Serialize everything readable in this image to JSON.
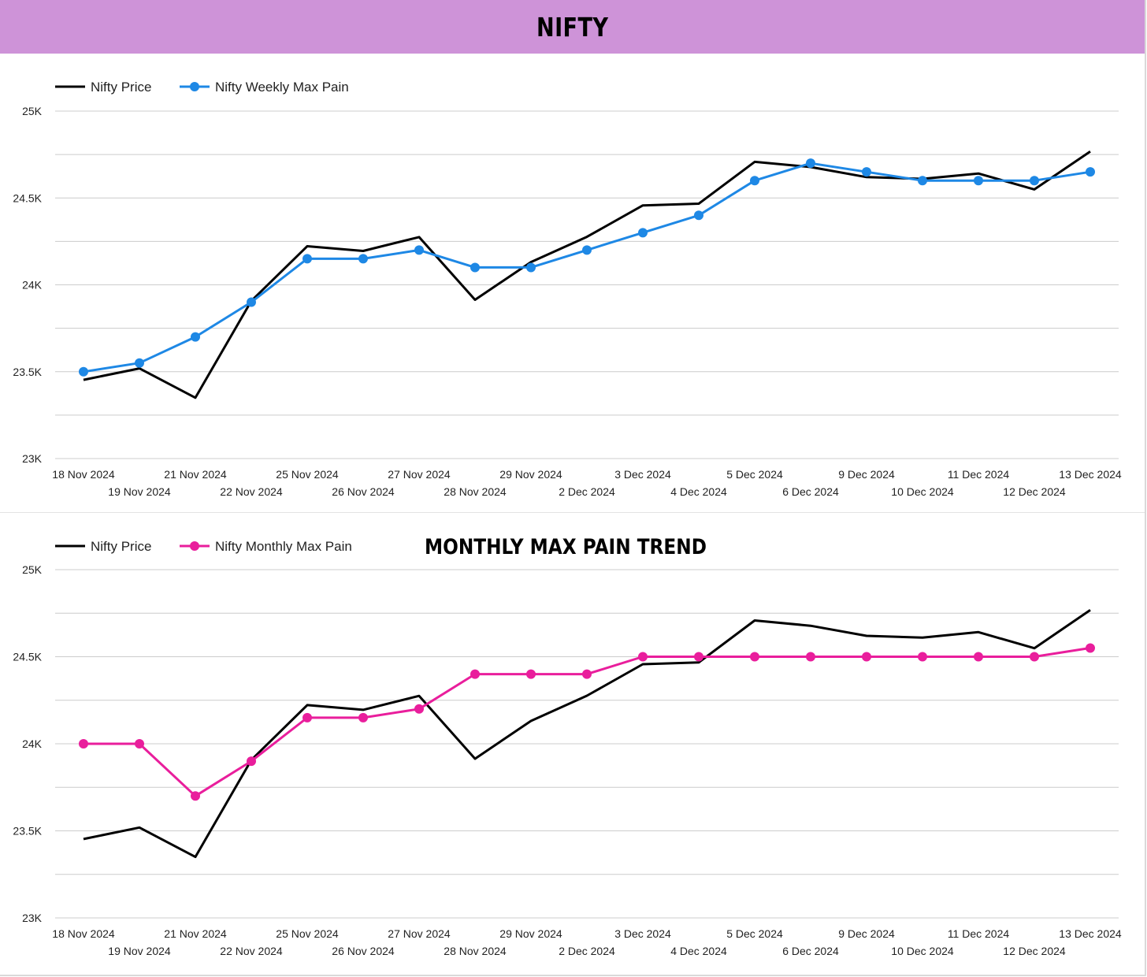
{
  "header": {
    "title": "NIFTY",
    "background": "#ce93d8"
  },
  "colors": {
    "price": "#000000",
    "weekly": "#1e88e5",
    "monthly": "#e91e9c",
    "grid": "#cccccc"
  },
  "chart_data": [
    {
      "type": "line",
      "title": "",
      "xlabel": "",
      "ylabel": "",
      "ylim": [
        23000,
        25000
      ],
      "y_ticks": [
        "23K",
        "23.5K",
        "24K",
        "24.5K",
        "25K"
      ],
      "grid": true,
      "legend": "top-left",
      "categories": [
        "18 Nov 2024",
        "19 Nov 2024",
        "21 Nov 2024",
        "22 Nov 2024",
        "25 Nov 2024",
        "26 Nov 2024",
        "27 Nov 2024",
        "28 Nov 2024",
        "29 Nov 2024",
        "2 Dec 2024",
        "3 Dec 2024",
        "4 Dec 2024",
        "5 Dec 2024",
        "6 Dec 2024",
        "9 Dec 2024",
        "10 Dec 2024",
        "11 Dec 2024",
        "12 Dec 2024",
        "13 Dec 2024"
      ],
      "series": [
        {
          "name": "Nifty Price",
          "color": "#000000",
          "markers": false,
          "values": [
            23453,
            23519,
            23350,
            23907,
            24222,
            24195,
            24275,
            23914,
            24131,
            24276,
            24457,
            24467,
            24708,
            24678,
            24620,
            24610,
            24641,
            24549,
            24768
          ]
        },
        {
          "name": "Nifty Weekly Max Pain",
          "color": "#1e88e5",
          "markers": true,
          "values": [
            23500,
            23550,
            23700,
            23900,
            24150,
            24150,
            24200,
            24100,
            24100,
            24200,
            24300,
            24400,
            24600,
            24700,
            24650,
            24600,
            24600,
            24600,
            24650
          ]
        }
      ]
    },
    {
      "type": "line",
      "title": "MONTHLY MAX PAIN TREND",
      "xlabel": "",
      "ylabel": "",
      "ylim": [
        23000,
        25000
      ],
      "y_ticks": [
        "23K",
        "23.5K",
        "24K",
        "24.5K",
        "25K"
      ],
      "grid": true,
      "legend": "top-left",
      "categories": [
        "18 Nov 2024",
        "19 Nov 2024",
        "21 Nov 2024",
        "22 Nov 2024",
        "25 Nov 2024",
        "26 Nov 2024",
        "27 Nov 2024",
        "28 Nov 2024",
        "29 Nov 2024",
        "2 Dec 2024",
        "3 Dec 2024",
        "4 Dec 2024",
        "5 Dec 2024",
        "6 Dec 2024",
        "9 Dec 2024",
        "10 Dec 2024",
        "11 Dec 2024",
        "12 Dec 2024",
        "13 Dec 2024"
      ],
      "series": [
        {
          "name": "Nifty Price",
          "color": "#000000",
          "markers": false,
          "values": [
            23453,
            23519,
            23350,
            23907,
            24222,
            24195,
            24275,
            23914,
            24131,
            24276,
            24457,
            24467,
            24708,
            24678,
            24620,
            24610,
            24641,
            24549,
            24768
          ]
        },
        {
          "name": "Nifty Monthly Max Pain",
          "color": "#e91e9c",
          "markers": true,
          "values": [
            24000,
            24000,
            23700,
            23900,
            24150,
            24150,
            24200,
            24400,
            24400,
            24400,
            24500,
            24500,
            24500,
            24500,
            24500,
            24500,
            24500,
            24500,
            24550
          ]
        }
      ]
    }
  ]
}
